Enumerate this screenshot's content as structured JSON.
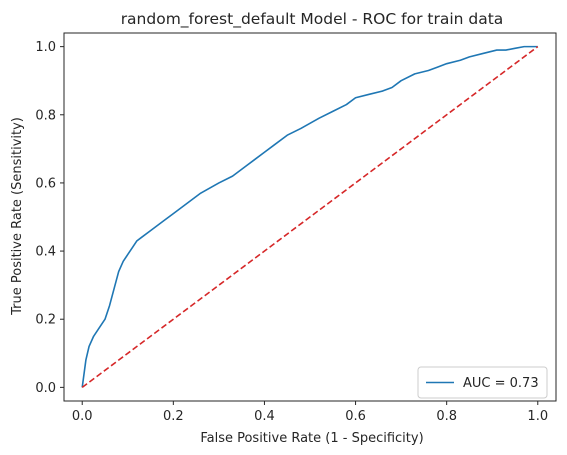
{
  "chart_data": {
    "type": "line",
    "title": "random_forest_default Model - ROC for train data",
    "xlabel": "False Positive Rate (1 - Specificity)",
    "ylabel": "True Positive Rate (Sensitivity)",
    "xlim": [
      -0.04,
      1.04
    ],
    "ylim": [
      -0.04,
      1.04
    ],
    "xticks": [
      "0.0",
      "0.2",
      "0.4",
      "0.6",
      "0.8",
      "1.0"
    ],
    "yticks": [
      "0.0",
      "0.2",
      "0.4",
      "0.6",
      "0.8",
      "1.0"
    ],
    "grid": false,
    "legend_position": "lower-right",
    "series": [
      {
        "name": "AUC = 0.73",
        "color": "#1f77b4",
        "style": "solid",
        "x": [
          0.0,
          0.003,
          0.008,
          0.015,
          0.025,
          0.035,
          0.05,
          0.06,
          0.07,
          0.08,
          0.09,
          0.1,
          0.11,
          0.12,
          0.13,
          0.15,
          0.18,
          0.2,
          0.23,
          0.26,
          0.3,
          0.33,
          0.36,
          0.38,
          0.4,
          0.42,
          0.45,
          0.48,
          0.52,
          0.55,
          0.58,
          0.6,
          0.63,
          0.66,
          0.68,
          0.7,
          0.73,
          0.76,
          0.78,
          0.8,
          0.83,
          0.85,
          0.88,
          0.91,
          0.93,
          0.95,
          0.97,
          1.0
        ],
        "y": [
          0.0,
          0.03,
          0.08,
          0.12,
          0.15,
          0.17,
          0.2,
          0.24,
          0.29,
          0.34,
          0.37,
          0.39,
          0.41,
          0.43,
          0.44,
          0.46,
          0.49,
          0.51,
          0.54,
          0.57,
          0.6,
          0.62,
          0.65,
          0.67,
          0.69,
          0.71,
          0.74,
          0.76,
          0.79,
          0.81,
          0.83,
          0.85,
          0.86,
          0.87,
          0.88,
          0.9,
          0.92,
          0.93,
          0.94,
          0.95,
          0.96,
          0.97,
          0.98,
          0.99,
          0.99,
          0.995,
          1.0,
          1.0
        ]
      },
      {
        "name": "",
        "color": "#d62728",
        "style": "dashed",
        "x": [
          0.0,
          1.0
        ],
        "y": [
          0.0,
          1.0
        ]
      }
    ]
  }
}
